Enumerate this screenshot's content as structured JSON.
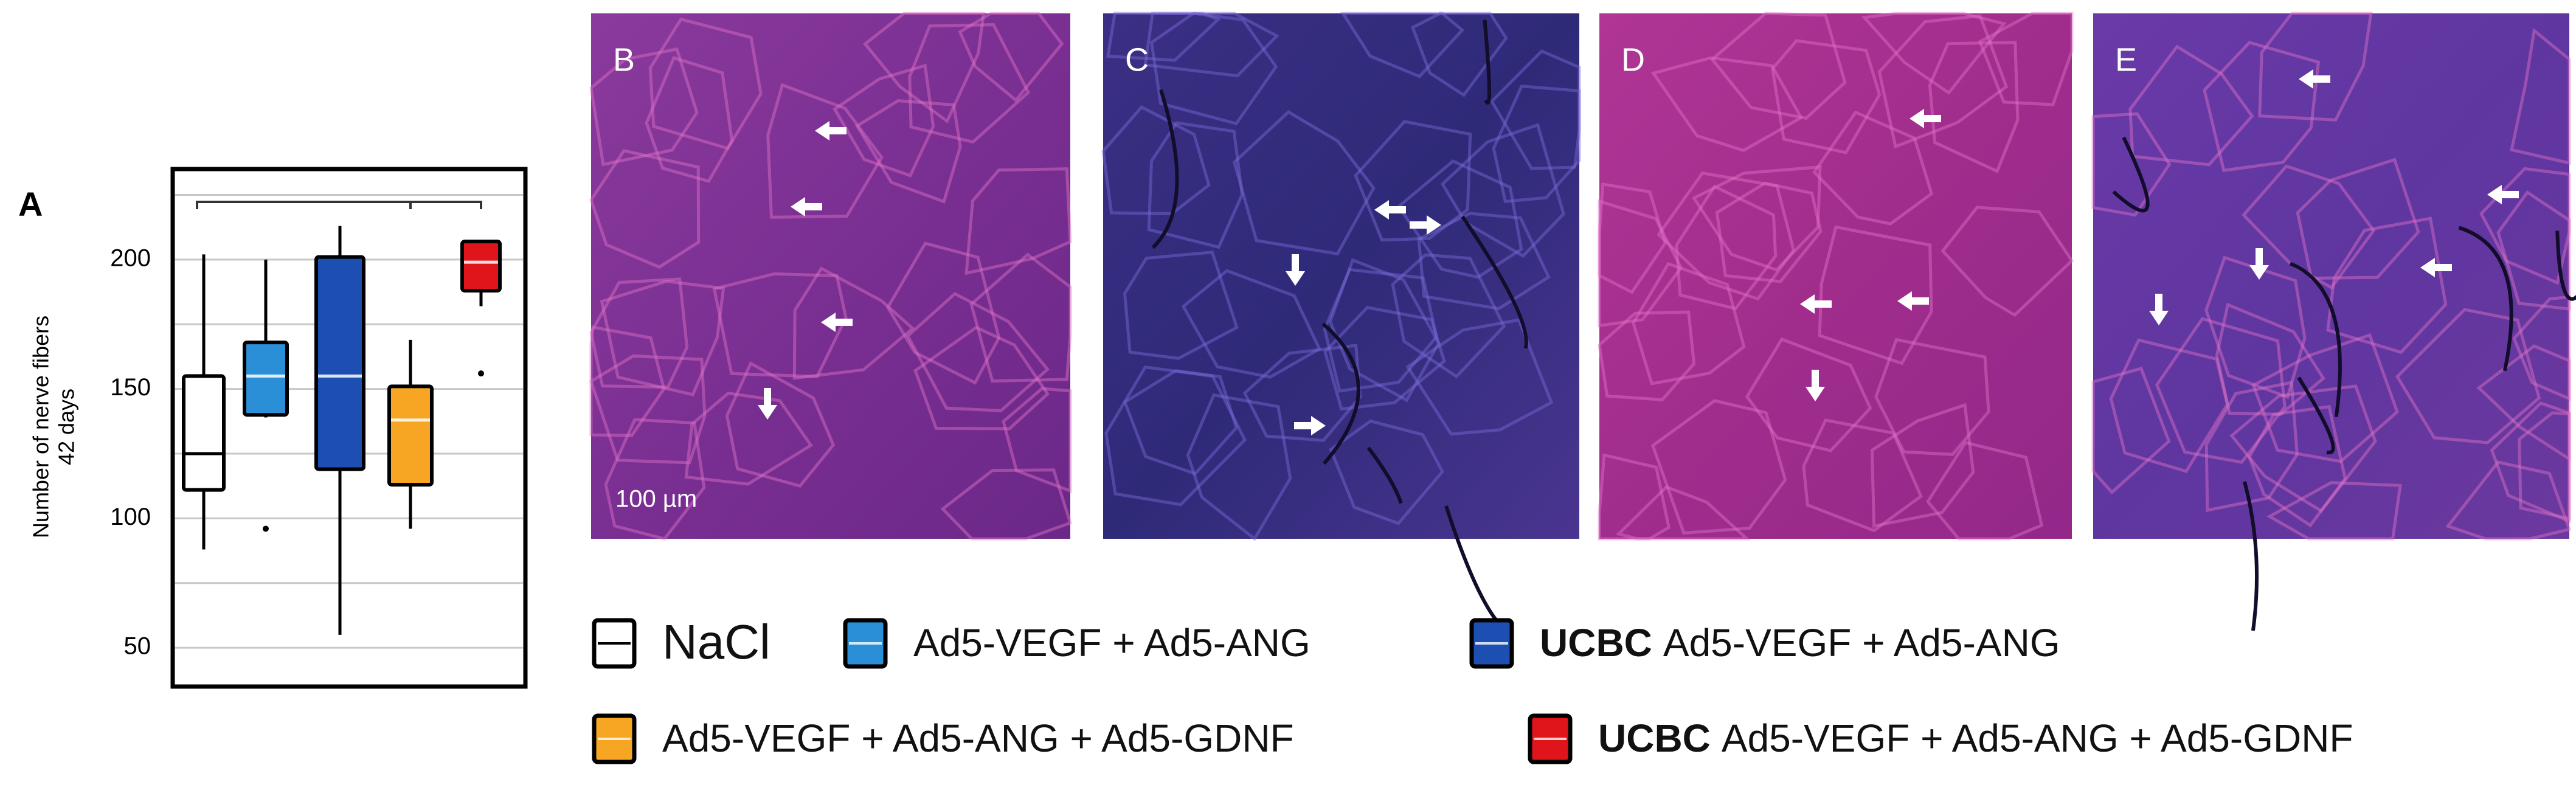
{
  "chart_data": {
    "type": "box",
    "panel_label": "A",
    "ylabel": [
      "Number of nerve fibers",
      "42 days"
    ],
    "ylim": [
      35,
      235
    ],
    "yticks": [
      50,
      100,
      150,
      200
    ],
    "minor_yticks": [
      75,
      125,
      175,
      225
    ],
    "grid": true,
    "series": [
      {
        "name": "NaCl",
        "color": "#ffffff",
        "low": 88,
        "q1": 111,
        "median": 125,
        "q3": 155,
        "high": 202,
        "outliers": []
      },
      {
        "name": "Ad5-VEGF + Ad5-ANG",
        "color": "#2b8fd8",
        "low": 139,
        "q1": 140,
        "median": 155,
        "q3": 168,
        "high": 200,
        "outliers": [
          96
        ]
      },
      {
        "prefix": "UCBC",
        "name": "Ad5-VEGF + Ad5-ANG",
        "color": "#1d4fb2",
        "low": 55,
        "q1": 119,
        "median": 155,
        "q3": 201,
        "high": 213,
        "outliers": []
      },
      {
        "name": "Ad5-VEGF + Ad5-ANG + Ad5-GDNF",
        "color": "#f6a623",
        "low": 96,
        "q1": 113,
        "median": 138,
        "q3": 151,
        "high": 169,
        "outliers": []
      },
      {
        "prefix": "UCBC",
        "name": "Ad5-VEGF + Ad5-ANG + Ad5-GDNF",
        "color": "#e0141b",
        "low": 182,
        "q1": 188,
        "median": 199,
        "q3": 207,
        "high": 207,
        "outliers": [
          156
        ]
      }
    ]
  },
  "panels": [
    {
      "label": "B",
      "scale_bar": "100 µm"
    },
    {
      "label": "C"
    },
    {
      "label": "D"
    },
    {
      "label": "E"
    }
  ]
}
